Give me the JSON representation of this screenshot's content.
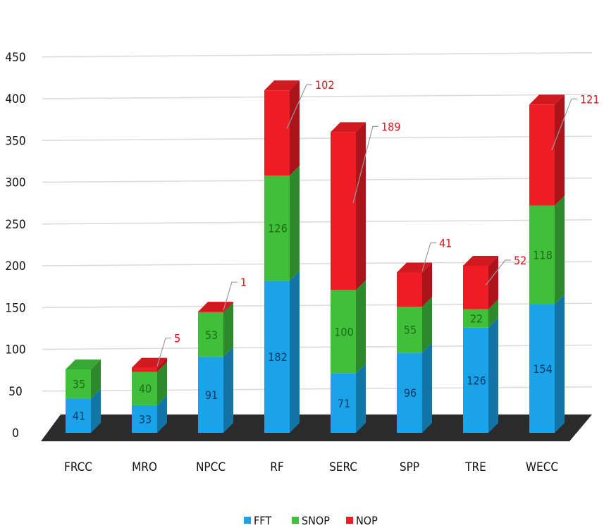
{
  "chart_data": {
    "type": "bar",
    "stacked": true,
    "style": "3d",
    "categories": [
      "FRCC",
      "MRO",
      "NPCC",
      "RF",
      "SERC",
      "SPP",
      "TRE",
      "WECC"
    ],
    "series": [
      {
        "name": "FFT",
        "values": [
          41,
          33,
          91,
          182,
          71,
          96,
          126,
          154
        ]
      },
      {
        "name": "SNOP",
        "values": [
          35,
          40,
          53,
          126,
          100,
          55,
          22,
          118
        ]
      },
      {
        "name": "NOP",
        "values": [
          null,
          5,
          1,
          102,
          189,
          41,
          52,
          121
        ]
      }
    ],
    "ylim": [
      0,
      450
    ],
    "yticks": [
      "0",
      "50",
      "100",
      "150",
      "200",
      "250",
      "300",
      "350",
      "400",
      "450"
    ],
    "grid": true,
    "legend": "bottom",
    "colors": {
      "FFT": "#1aa3e8",
      "SNOP": "#3fbf3a",
      "NOP": "#ee1c24",
      "floor": "#2b2b2b",
      "grid": "#d9d9d9"
    }
  }
}
